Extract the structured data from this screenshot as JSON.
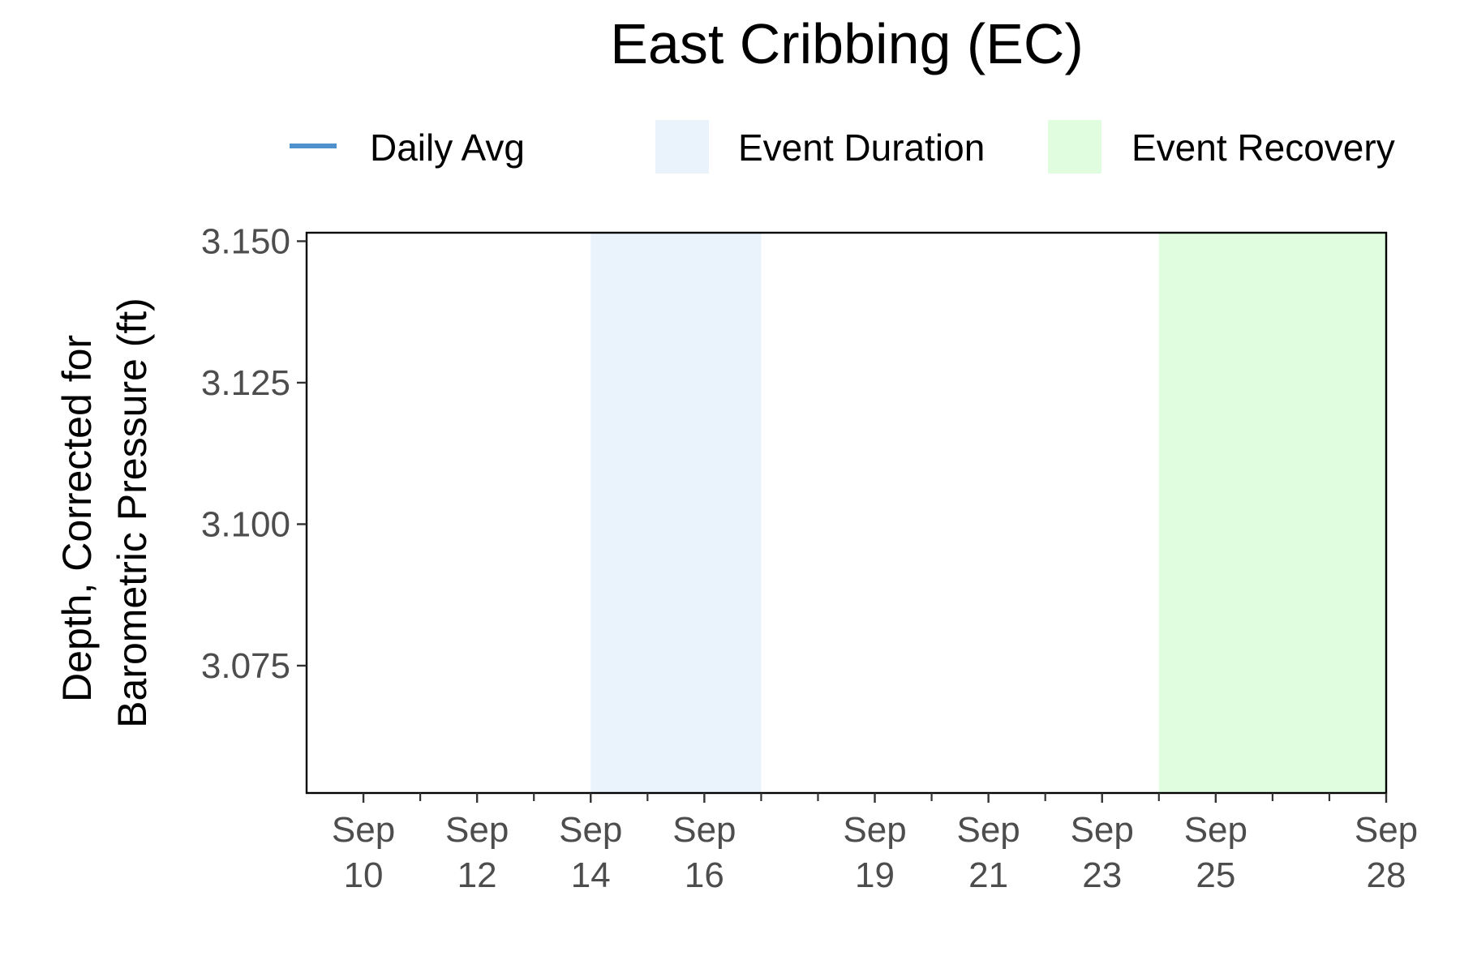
{
  "chart_data": {
    "type": "line",
    "title": "East Cribbing (EC)",
    "ylabel_lines": [
      "Depth, Corrected for",
      "Barometric Pressure (ft)"
    ],
    "xlabel": "",
    "x_axis": {
      "type": "date",
      "range": [
        "2023-09-09",
        "2023-09-28"
      ],
      "ticks": [
        {
          "date": "2023-09-10",
          "line1": "Sep",
          "line2": "10"
        },
        {
          "date": "2023-09-12",
          "line1": "Sep",
          "line2": "12"
        },
        {
          "date": "2023-09-14",
          "line1": "Sep",
          "line2": "14"
        },
        {
          "date": "2023-09-16",
          "line1": "Sep",
          "line2": "16"
        },
        {
          "date": "2023-09-19",
          "line1": "Sep",
          "line2": "19"
        },
        {
          "date": "2023-09-21",
          "line1": "Sep",
          "line2": "21"
        },
        {
          "date": "2023-09-23",
          "line1": "Sep",
          "line2": "23"
        },
        {
          "date": "2023-09-25",
          "line1": "Sep",
          "line2": "25"
        },
        {
          "date": "2023-09-28",
          "line1": "Sep",
          "line2": "28"
        }
      ],
      "minor_tick_dates": [
        "2023-09-11",
        "2023-09-13",
        "2023-09-15",
        "2023-09-17",
        "2023-09-18",
        "2023-09-20",
        "2023-09-22",
        "2023-09-24",
        "2023-09-26",
        "2023-09-27"
      ]
    },
    "y_axis": {
      "range": [
        3.0525,
        3.1515
      ],
      "ticks": [
        {
          "value": 3.075,
          "label": "3.075"
        },
        {
          "value": 3.1,
          "label": "3.100"
        },
        {
          "value": 3.125,
          "label": "3.125"
        },
        {
          "value": 3.15,
          "label": "3.150"
        }
      ]
    },
    "series": [
      {
        "name": "Daily Avg",
        "color": "#4f90cd",
        "points": []
      }
    ],
    "shaded_regions": [
      {
        "name": "Event Duration",
        "color": "#eaf3fc",
        "start": "2023-09-14",
        "end": "2023-09-17"
      },
      {
        "name": "Event Recovery",
        "color": "#e0fde0",
        "start": "2023-09-24",
        "end": "2023-09-28"
      }
    ],
    "legend": {
      "position": "top",
      "items": [
        {
          "label": "Daily Avg",
          "kind": "line",
          "color": "#4f90cd"
        },
        {
          "label": "Event Duration",
          "kind": "fill",
          "color": "#eaf3fc"
        },
        {
          "label": "Event Recovery",
          "kind": "fill",
          "color": "#e0fde0"
        }
      ]
    },
    "grid": false
  }
}
